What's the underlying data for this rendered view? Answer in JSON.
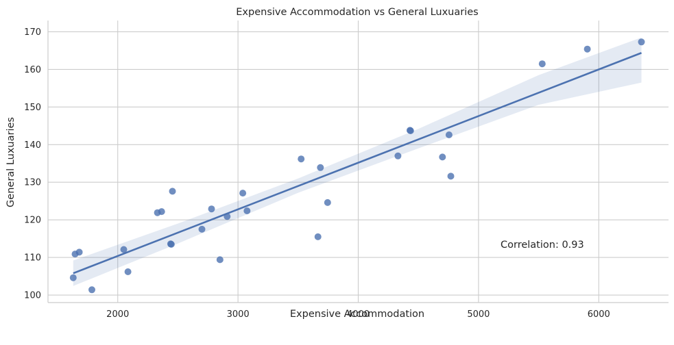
{
  "chart_data": {
    "type": "scatter",
    "title": "Expensive Accommodation vs General Luxuaries",
    "xlabel": "Expensive Accommodation",
    "ylabel": "General Luxuaries",
    "xlim": [
      1420,
      6580
    ],
    "ylim": [
      98,
      173
    ],
    "xticks": [
      2000,
      3000,
      4000,
      5000,
      6000
    ],
    "yticks": [
      100,
      110,
      120,
      130,
      140,
      150,
      160,
      170
    ],
    "grid": true,
    "annotation": "Correlation: 0.93",
    "colors": {
      "points": "#4c72b0",
      "line": "#4c72b0"
    },
    "x": [
      1630,
      1645,
      1680,
      1785,
      2050,
      2085,
      2330,
      2365,
      2440,
      2445,
      2455,
      2700,
      2780,
      2850,
      2910,
      3040,
      3075,
      3525,
      3665,
      3685,
      3745,
      4330,
      4430,
      4435,
      4700,
      4755,
      4770,
      5530,
      5905,
      6355
    ],
    "y": [
      104.6,
      110.9,
      111.4,
      101.4,
      112.1,
      106.2,
      121.9,
      122.2,
      113.6,
      113.5,
      127.6,
      117.5,
      122.9,
      109.4,
      120.9,
      127.1,
      122.4,
      136.2,
      115.5,
      133.9,
      124.6,
      137.0,
      143.8,
      143.7,
      136.7,
      142.6,
      131.6,
      161.5,
      165.4,
      167.3
    ],
    "regression": {
      "x_range": [
        1630,
        6355
      ],
      "y_range": [
        105.8,
        164.4
      ]
    },
    "ci_band": {
      "x": [
        1630,
        2500,
        3500,
        4500,
        5500,
        6355
      ],
      "lower": [
        102.4,
        113.7,
        127.2,
        139.0,
        150.6,
        156.5
      ],
      "upper": [
        109.2,
        119.0,
        131.0,
        144.2,
        158.5,
        168.5
      ]
    }
  }
}
